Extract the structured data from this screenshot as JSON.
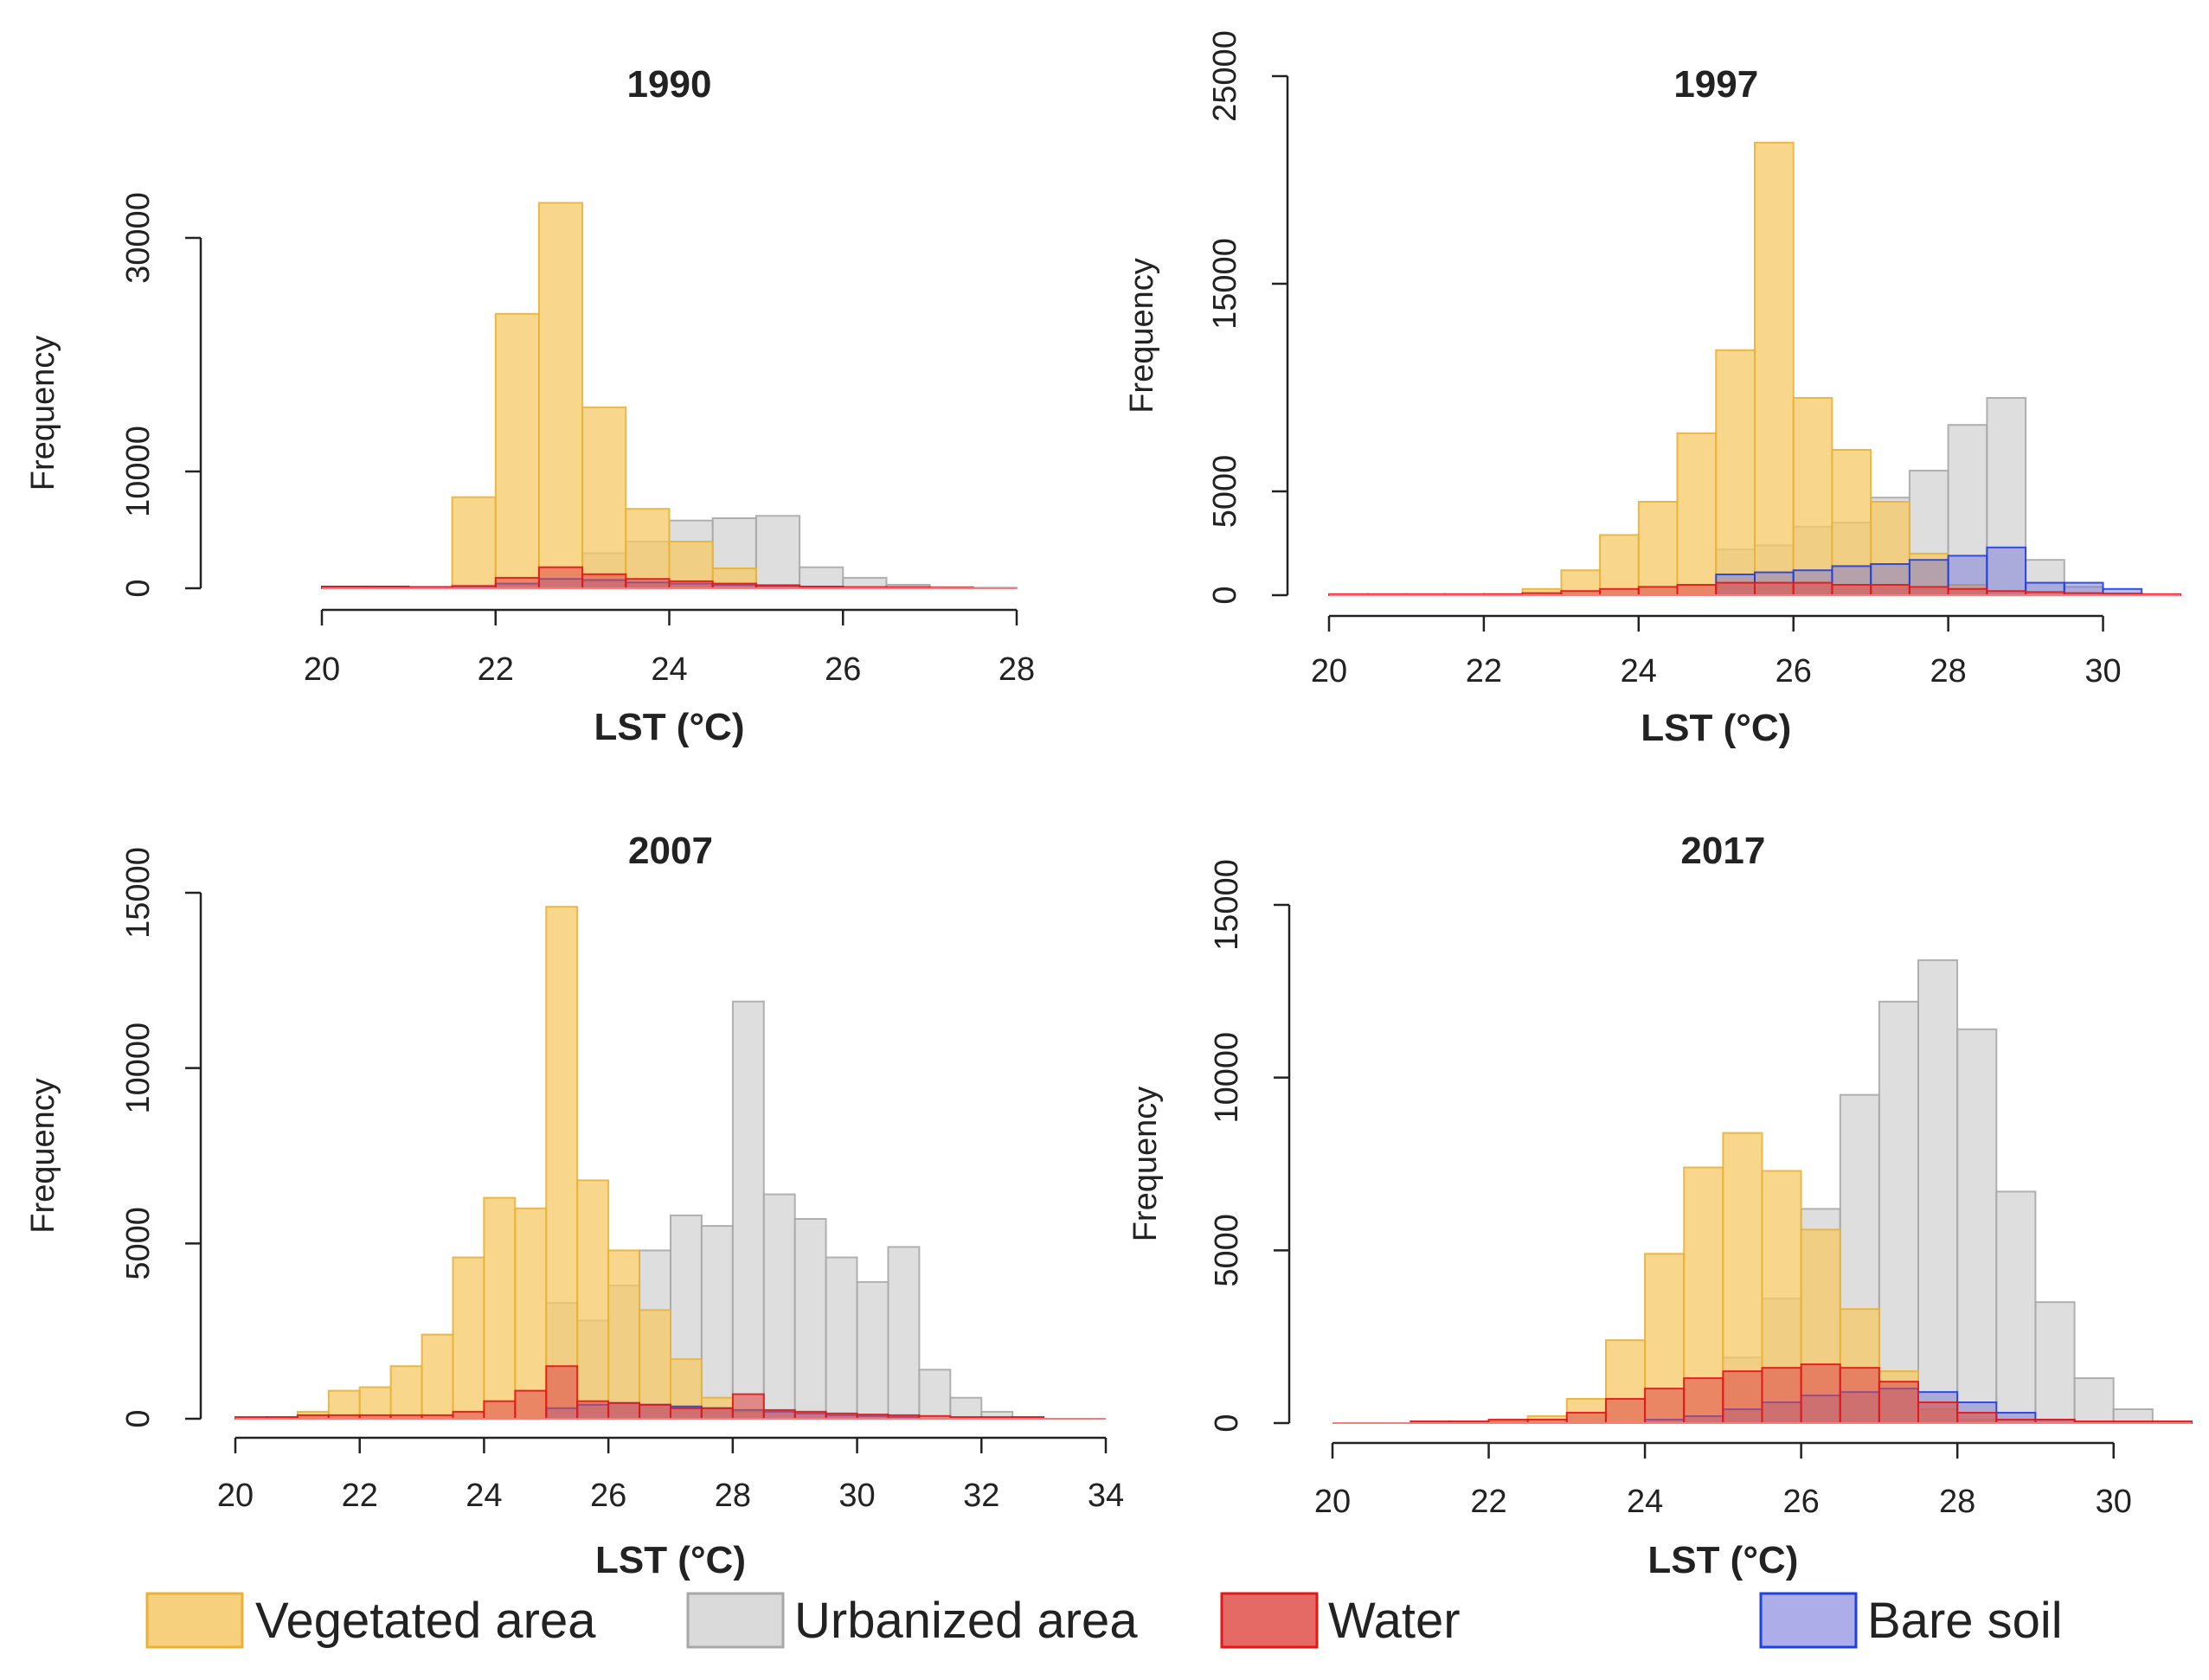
{
  "colors": {
    "vegetated_fill": "#f5c866",
    "vegetated_stroke": "#e8b23a",
    "urbanized_fill": "#d3d3d3",
    "urbanized_stroke": "#a8a8a8",
    "water_fill": "#e0504a",
    "water_stroke": "#e01818",
    "bare_fill": "#6a6ad8",
    "bare_stroke": "#2040e0"
  },
  "legend": {
    "vegetated": "Vegetated area",
    "urbanized": "Urbanized area",
    "water": "Water",
    "bare": "Bare soil"
  },
  "chart_data": [
    {
      "type": "bar",
      "title": "1990",
      "xlabel": "LST (°C)",
      "ylabel": "Frequency",
      "xlim": [
        20,
        28
      ],
      "ylim": [
        0,
        40000
      ],
      "xticks": [
        20,
        22,
        24,
        26,
        28
      ],
      "yticks": [
        0,
        10000,
        30000
      ],
      "bin_width": 0.5,
      "series": [
        {
          "name": "Vegetated area",
          "key": "vegetated",
          "bins": [
            [
              21.5,
              7800
            ],
            [
              22,
              23500
            ],
            [
              22.5,
              33000
            ],
            [
              23,
              15500
            ],
            [
              23.5,
              6800
            ],
            [
              24,
              4000
            ],
            [
              24.5,
              1700
            ],
            [
              25,
              300
            ]
          ]
        },
        {
          "name": "Urbanized area",
          "key": "urbanized",
          "bins": [
            [
              23,
              3000
            ],
            [
              23.5,
              4000
            ],
            [
              24,
              5800
            ],
            [
              24.5,
              6000
            ],
            [
              25,
              6200
            ],
            [
              25.5,
              1800
            ],
            [
              26,
              900
            ],
            [
              26.5,
              300
            ],
            [
              27,
              100
            ],
            [
              27.5,
              50
            ]
          ]
        },
        {
          "name": "Water",
          "key": "water",
          "bins": [
            [
              20,
              100
            ],
            [
              20.5,
              100
            ],
            [
              21,
              100
            ],
            [
              21.5,
              200
            ],
            [
              22,
              900
            ],
            [
              22.5,
              1800
            ],
            [
              23,
              1200
            ],
            [
              23.5,
              800
            ],
            [
              24,
              600
            ],
            [
              24.5,
              400
            ],
            [
              25,
              250
            ],
            [
              25.5,
              150
            ],
            [
              26,
              100
            ],
            [
              26.5,
              100
            ],
            [
              27,
              50
            ]
          ]
        },
        {
          "name": "Bare soil",
          "key": "bare",
          "bins": [
            [
              20,
              150
            ],
            [
              20.5,
              150
            ],
            [
              21,
              100
            ],
            [
              21.5,
              100
            ],
            [
              22,
              400
            ],
            [
              22.5,
              800
            ],
            [
              23,
              700
            ],
            [
              23.5,
              500
            ],
            [
              24,
              400
            ],
            [
              24.5,
              300
            ],
            [
              25,
              200
            ],
            [
              25.5,
              100
            ]
          ]
        }
      ]
    },
    {
      "type": "bar",
      "title": "1997",
      "xlabel": "LST (°C)",
      "ylabel": "Frequency",
      "xlim": [
        20,
        31
      ],
      "ylim": [
        0,
        25000
      ],
      "xticks": [
        20,
        22,
        24,
        26,
        28,
        30
      ],
      "yticks": [
        0,
        5000,
        15000,
        25000
      ],
      "bin_width": 0.5,
      "series": [
        {
          "name": "Vegetated area",
          "key": "vegetated",
          "bins": [
            [
              22,
              50
            ],
            [
              22.5,
              300
            ],
            [
              23,
              1200
            ],
            [
              23.5,
              2900
            ],
            [
              24,
              4500
            ],
            [
              24.5,
              7800
            ],
            [
              25,
              11800
            ],
            [
              25.5,
              21800
            ],
            [
              26,
              9500
            ],
            [
              26.5,
              7000
            ],
            [
              27,
              4500
            ],
            [
              27.5,
              2000
            ],
            [
              28,
              500
            ]
          ]
        },
        {
          "name": "Urbanized area",
          "key": "urbanized",
          "bins": [
            [
              25,
              2200
            ],
            [
              25.5,
              2400
            ],
            [
              26,
              3300
            ],
            [
              26.5,
              3500
            ],
            [
              27,
              4700
            ],
            [
              27.5,
              6000
            ],
            [
              28,
              8200
            ],
            [
              28.5,
              9500
            ],
            [
              29,
              1700
            ],
            [
              29.5,
              400
            ]
          ]
        },
        {
          "name": "Water",
          "key": "water",
          "bins": [
            [
              20,
              50
            ],
            [
              20.5,
              50
            ],
            [
              21,
              50
            ],
            [
              21.5,
              50
            ],
            [
              22,
              50
            ],
            [
              22.5,
              100
            ],
            [
              23,
              200
            ],
            [
              23.5,
              300
            ],
            [
              24,
              400
            ],
            [
              24.5,
              500
            ],
            [
              25,
              600
            ],
            [
              25.5,
              600
            ],
            [
              26,
              600
            ],
            [
              26.5,
              500
            ],
            [
              27,
              500
            ],
            [
              27.5,
              400
            ],
            [
              28,
              300
            ],
            [
              28.5,
              200
            ],
            [
              29,
              150
            ],
            [
              29.5,
              100
            ],
            [
              30,
              80
            ],
            [
              30.5,
              50
            ]
          ]
        },
        {
          "name": "Bare soil",
          "key": "bare",
          "bins": [
            [
              25,
              1000
            ],
            [
              25.5,
              1100
            ],
            [
              26,
              1200
            ],
            [
              26.5,
              1400
            ],
            [
              27,
              1500
            ],
            [
              27.5,
              1700
            ],
            [
              28,
              1900
            ],
            [
              28.5,
              2300
            ],
            [
              29,
              600
            ],
            [
              29.5,
              600
            ],
            [
              30,
              300
            ]
          ]
        }
      ]
    },
    {
      "type": "bar",
      "title": "2007",
      "xlabel": "LST (°C)",
      "ylabel": "Frequency",
      "xlim": [
        20,
        34
      ],
      "ylim": [
        0,
        15000
      ],
      "xticks": [
        20,
        22,
        24,
        26,
        28,
        30,
        32,
        34
      ],
      "yticks": [
        0,
        5000,
        10000,
        15000
      ],
      "bin_width": 0.5,
      "series": [
        {
          "name": "Vegetated area",
          "key": "vegetated",
          "bins": [
            [
              20.5,
              50
            ],
            [
              21,
              200
            ],
            [
              21.5,
              800
            ],
            [
              22,
              900
            ],
            [
              22.5,
              1500
            ],
            [
              23,
              2400
            ],
            [
              23.5,
              4600
            ],
            [
              24,
              6300
            ],
            [
              24.5,
              6000
            ],
            [
              25,
              14600
            ],
            [
              25.5,
              6800
            ],
            [
              26,
              4800
            ],
            [
              26.5,
              3100
            ],
            [
              27,
              1700
            ],
            [
              27.5,
              600
            ],
            [
              28,
              200
            ]
          ]
        },
        {
          "name": "Urbanized area",
          "key": "urbanized",
          "bins": [
            [
              25,
              3300
            ],
            [
              25.5,
              2800
            ],
            [
              26,
              3800
            ],
            [
              26.5,
              4800
            ],
            [
              27,
              5800
            ],
            [
              27.5,
              5500
            ],
            [
              28,
              11900
            ],
            [
              28.5,
              6400
            ],
            [
              29,
              5700
            ],
            [
              29.5,
              4600
            ],
            [
              30,
              3900
            ],
            [
              30.5,
              4900
            ],
            [
              31,
              1400
            ],
            [
              31.5,
              600
            ],
            [
              32,
              200
            ],
            [
              32.5,
              50
            ]
          ]
        },
        {
          "name": "Water",
          "key": "water",
          "bins": [
            [
              20,
              50
            ],
            [
              20.5,
              50
            ],
            [
              21,
              100
            ],
            [
              21.5,
              100
            ],
            [
              22,
              100
            ],
            [
              22.5,
              100
            ],
            [
              23,
              100
            ],
            [
              23.5,
              200
            ],
            [
              24,
              500
            ],
            [
              24.5,
              800
            ],
            [
              25,
              1500
            ],
            [
              25.5,
              500
            ],
            [
              26,
              450
            ],
            [
              26.5,
              400
            ],
            [
              27,
              300
            ],
            [
              27.5,
              300
            ],
            [
              28,
              700
            ],
            [
              28.5,
              250
            ],
            [
              29,
              200
            ],
            [
              29.5,
              150
            ],
            [
              30,
              120
            ],
            [
              30.5,
              100
            ],
            [
              31,
              80
            ],
            [
              31.5,
              50
            ],
            [
              32,
              50
            ],
            [
              32.5,
              50
            ]
          ]
        },
        {
          "name": "Bare soil",
          "key": "bare",
          "bins": [
            [
              25,
              300
            ],
            [
              25.5,
              400
            ],
            [
              26,
              450
            ],
            [
              26.5,
              400
            ],
            [
              27,
              350
            ],
            [
              27.5,
              300
            ],
            [
              28,
              250
            ],
            [
              28.5,
              200
            ],
            [
              29,
              150
            ],
            [
              29.5,
              100
            ],
            [
              30,
              80
            ],
            [
              30.5,
              50
            ]
          ]
        }
      ]
    },
    {
      "type": "bar",
      "title": "2017",
      "xlabel": "LST (°C)",
      "ylabel": "Frequency",
      "xlim": [
        20,
        31
      ],
      "ylim": [
        0,
        15000
      ],
      "xticks": [
        20,
        22,
        24,
        26,
        28,
        30
      ],
      "yticks": [
        0,
        5000,
        10000,
        15000
      ],
      "bin_width": 0.5,
      "series": [
        {
          "name": "Vegetated area",
          "key": "vegetated",
          "bins": [
            [
              22,
              50
            ],
            [
              22.5,
              200
            ],
            [
              23,
              700
            ],
            [
              23.5,
              2400
            ],
            [
              24,
              4900
            ],
            [
              24.5,
              7400
            ],
            [
              25,
              8400
            ],
            [
              25.5,
              7300
            ],
            [
              26,
              5600
            ],
            [
              26.5,
              3300
            ],
            [
              27,
              1500
            ],
            [
              27.5,
              400
            ],
            [
              28,
              100
            ]
          ]
        },
        {
          "name": "Urbanized area",
          "key": "urbanized",
          "bins": [
            [
              25,
              1900
            ],
            [
              25.5,
              3600
            ],
            [
              26,
              6200
            ],
            [
              26.5,
              9500
            ],
            [
              27,
              12200
            ],
            [
              27.5,
              13400
            ],
            [
              28,
              11400
            ],
            [
              28.5,
              6700
            ],
            [
              29,
              3500
            ],
            [
              29.5,
              1300
            ],
            [
              30,
              400
            ]
          ]
        },
        {
          "name": "Water",
          "key": "water",
          "bins": [
            [
              21,
              50
            ],
            [
              21.5,
              50
            ],
            [
              22,
              100
            ],
            [
              22.5,
              100
            ],
            [
              23,
              300
            ],
            [
              23.5,
              700
            ],
            [
              24,
              1000
            ],
            [
              24.5,
              1300
            ],
            [
              25,
              1500
            ],
            [
              25.5,
              1600
            ],
            [
              26,
              1700
            ],
            [
              26.5,
              1600
            ],
            [
              27,
              1200
            ],
            [
              27.5,
              600
            ],
            [
              28,
              300
            ],
            [
              28.5,
              100
            ],
            [
              29,
              100
            ],
            [
              29.5,
              50
            ],
            [
              30,
              50
            ],
            [
              30.5,
              50
            ]
          ]
        },
        {
          "name": "Bare soil",
          "key": "bare",
          "bins": [
            [
              24,
              100
            ],
            [
              24.5,
              200
            ],
            [
              25,
              400
            ],
            [
              25.5,
              600
            ],
            [
              26,
              800
            ],
            [
              26.5,
              900
            ],
            [
              27,
              1000
            ],
            [
              27.5,
              900
            ],
            [
              28,
              600
            ],
            [
              28.5,
              300
            ],
            [
              29,
              100
            ]
          ]
        }
      ]
    }
  ]
}
